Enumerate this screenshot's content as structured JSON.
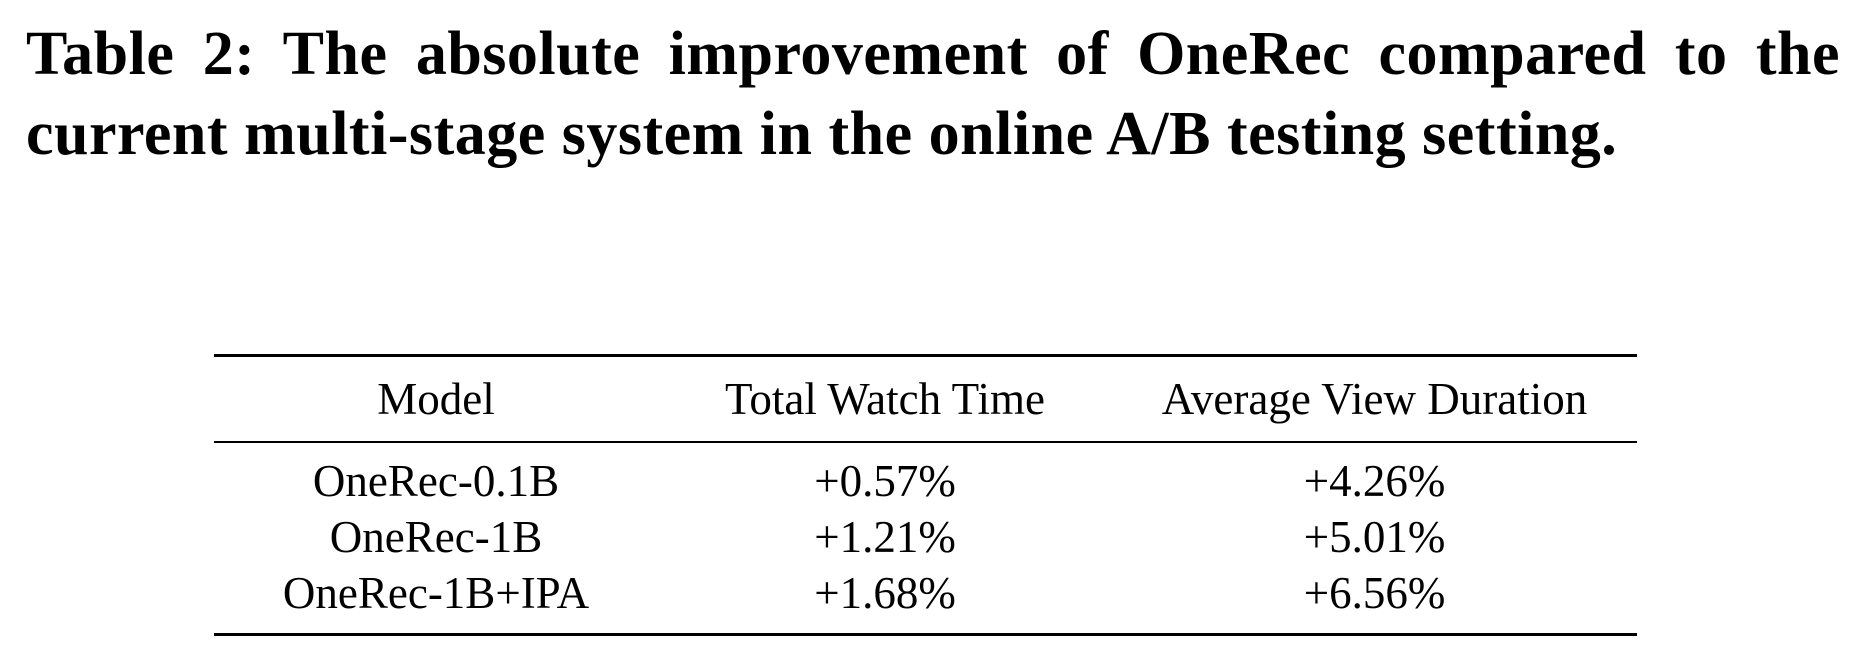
{
  "caption": "Table 2: The absolute improvement of OneRec compared to the current multi-stage system in the online A/B testing setting.",
  "table": {
    "header": [
      "Model",
      "Total Watch Time",
      "Average View Duration"
    ],
    "rows": [
      [
        "OneRec-0.1B",
        "+0.57%",
        "+4.26%"
      ],
      [
        "OneRec-1B",
        "+1.21%",
        "+5.01%"
      ],
      [
        "OneRec-1B+IPA",
        "+1.68%",
        "+6.56%"
      ]
    ]
  }
}
